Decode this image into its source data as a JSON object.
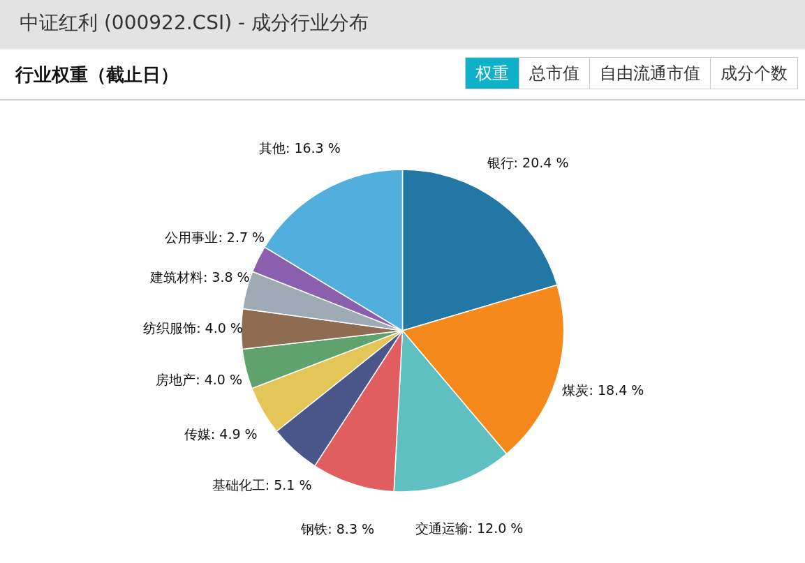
{
  "chart_data": {
    "type": "pie",
    "title": "中证红利 (000922.CSI) - 成分行业分布",
    "subtitle": "行业权重（截止日）",
    "annotations": [
      "权重",
      "总市值",
      "自由流通市值",
      "成分个数"
    ],
    "categories": [
      "银行",
      "煤炭",
      "交通运输",
      "钢铁",
      "基础化工",
      "传媒",
      "房地产",
      "纺织服饰",
      "建筑材料",
      "公用事业",
      "其他"
    ],
    "values": [
      20.4,
      18.4,
      12.0,
      8.3,
      5.1,
      4.9,
      4.0,
      4.0,
      3.8,
      2.7,
      16.3
    ],
    "value_labels": [
      "20.4 %",
      "18.4 %",
      "12.0 %",
      "8.3 %",
      "5.1 %",
      "4.9 %",
      "4.0 %",
      "4.0 %",
      "3.8 %",
      "2.7 %",
      "16.3 %"
    ],
    "colors": [
      "#2277a4",
      "#f5891b",
      "#60bfc0",
      "#e05e5f",
      "#4a5689",
      "#e4c658",
      "#5fa26e",
      "#8e6c52",
      "#9eaab5",
      "#8a60ae",
      "#52aedd"
    ]
  }
}
